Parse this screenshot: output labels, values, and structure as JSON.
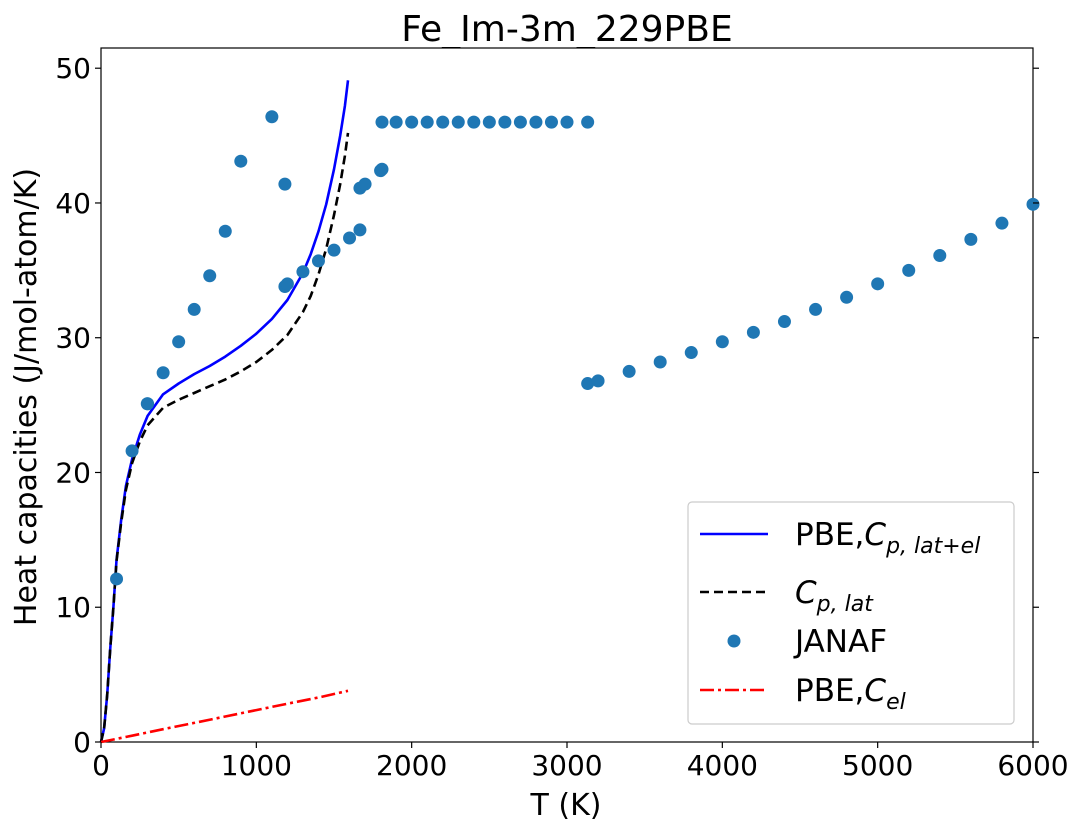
{
  "chart_data": {
    "type": "line",
    "title": "Fe_Im-3m_229PBE",
    "xlabel": "T (K)",
    "ylabel": "Heat capacities (J/mol-atom/K)",
    "xlim": [
      0,
      6000
    ],
    "ylim": [
      0,
      51.5
    ],
    "xticks": [
      0,
      1000,
      2000,
      3000,
      4000,
      5000,
      6000
    ],
    "yticks": [
      0,
      10,
      20,
      30,
      40,
      50
    ],
    "grid": false,
    "legend_position": "lower-right",
    "series": [
      {
        "name": "PBE,",
        "name_math": {
          "base": "C",
          "sub": "p, lat+el"
        },
        "kind": "line",
        "color": "#0000ff",
        "dash": "solid",
        "x": [
          0,
          20,
          40,
          60,
          80,
          100,
          130,
          160,
          200,
          250,
          300,
          400,
          500,
          600,
          700,
          800,
          900,
          1000,
          1100,
          1200,
          1300,
          1350,
          1400,
          1450,
          1500,
          1540,
          1570,
          1590
        ],
        "y": [
          0,
          1.0,
          3.5,
          7.0,
          10.0,
          13.5,
          16.5,
          19.0,
          21.0,
          22.8,
          24.2,
          25.8,
          26.6,
          27.3,
          27.9,
          28.6,
          29.4,
          30.3,
          31.4,
          32.8,
          34.8,
          36.2,
          37.9,
          39.9,
          42.5,
          45.0,
          47.2,
          49.1
        ]
      },
      {
        "name": "",
        "name_math": {
          "base": "C",
          "sub": "p, lat"
        },
        "kind": "line",
        "color": "#000000",
        "dash": "dashed",
        "x": [
          0,
          20,
          40,
          60,
          80,
          100,
          130,
          160,
          200,
          250,
          300,
          400,
          500,
          600,
          700,
          800,
          900,
          1000,
          1100,
          1200,
          1300,
          1350,
          1400,
          1450,
          1500,
          1540,
          1570,
          1590
        ],
        "y": [
          0,
          1.0,
          3.5,
          7.0,
          10.0,
          13.4,
          16.3,
          18.7,
          20.7,
          22.3,
          23.5,
          24.8,
          25.4,
          25.9,
          26.4,
          26.9,
          27.5,
          28.2,
          29.1,
          30.2,
          31.9,
          33.1,
          34.7,
          36.6,
          39.1,
          41.4,
          43.5,
          45.2
        ]
      },
      {
        "name": "JANAF",
        "kind": "scatter",
        "color": "#1f77b4",
        "x": [
          100,
          200,
          298,
          300,
          400,
          500,
          600,
          700,
          800,
          900,
          1100,
          1184,
          1184,
          1200,
          1300,
          1400,
          1500,
          1600,
          1667,
          1667,
          1700,
          1800,
          1809,
          1809,
          1900,
          2000,
          2100,
          2200,
          2300,
          2400,
          2500,
          2600,
          2700,
          2800,
          2900,
          3000,
          3133,
          3133,
          3200,
          3400,
          3600,
          3800,
          4000,
          4200,
          4400,
          4600,
          4800,
          5000,
          5200,
          5400,
          5600,
          5800,
          6000
        ],
        "y": [
          12.1,
          21.6,
          25.1,
          25.1,
          27.4,
          29.7,
          32.1,
          34.6,
          37.9,
          43.1,
          46.4,
          41.4,
          33.8,
          34.0,
          34.9,
          35.7,
          36.5,
          37.4,
          38.0,
          41.1,
          41.4,
          42.4,
          42.5,
          46.0,
          46.0,
          46.0,
          46.0,
          46.0,
          46.0,
          46.0,
          46.0,
          46.0,
          46.0,
          46.0,
          46.0,
          46.0,
          46.0,
          26.6,
          26.8,
          27.5,
          28.2,
          28.9,
          29.7,
          30.4,
          31.2,
          32.1,
          33.0,
          34.0,
          35.0,
          36.1,
          37.3,
          38.5,
          39.9
        ]
      },
      {
        "name": "PBE,",
        "name_math": {
          "base": "C",
          "sub": "el"
        },
        "kind": "line",
        "color": "#ff0000",
        "dash": "dashdot",
        "x": [
          0,
          200,
          400,
          600,
          800,
          1000,
          1200,
          1400,
          1590
        ],
        "y": [
          0,
          0.47,
          0.95,
          1.42,
          1.89,
          2.37,
          2.84,
          3.3,
          3.8
        ]
      }
    ]
  }
}
